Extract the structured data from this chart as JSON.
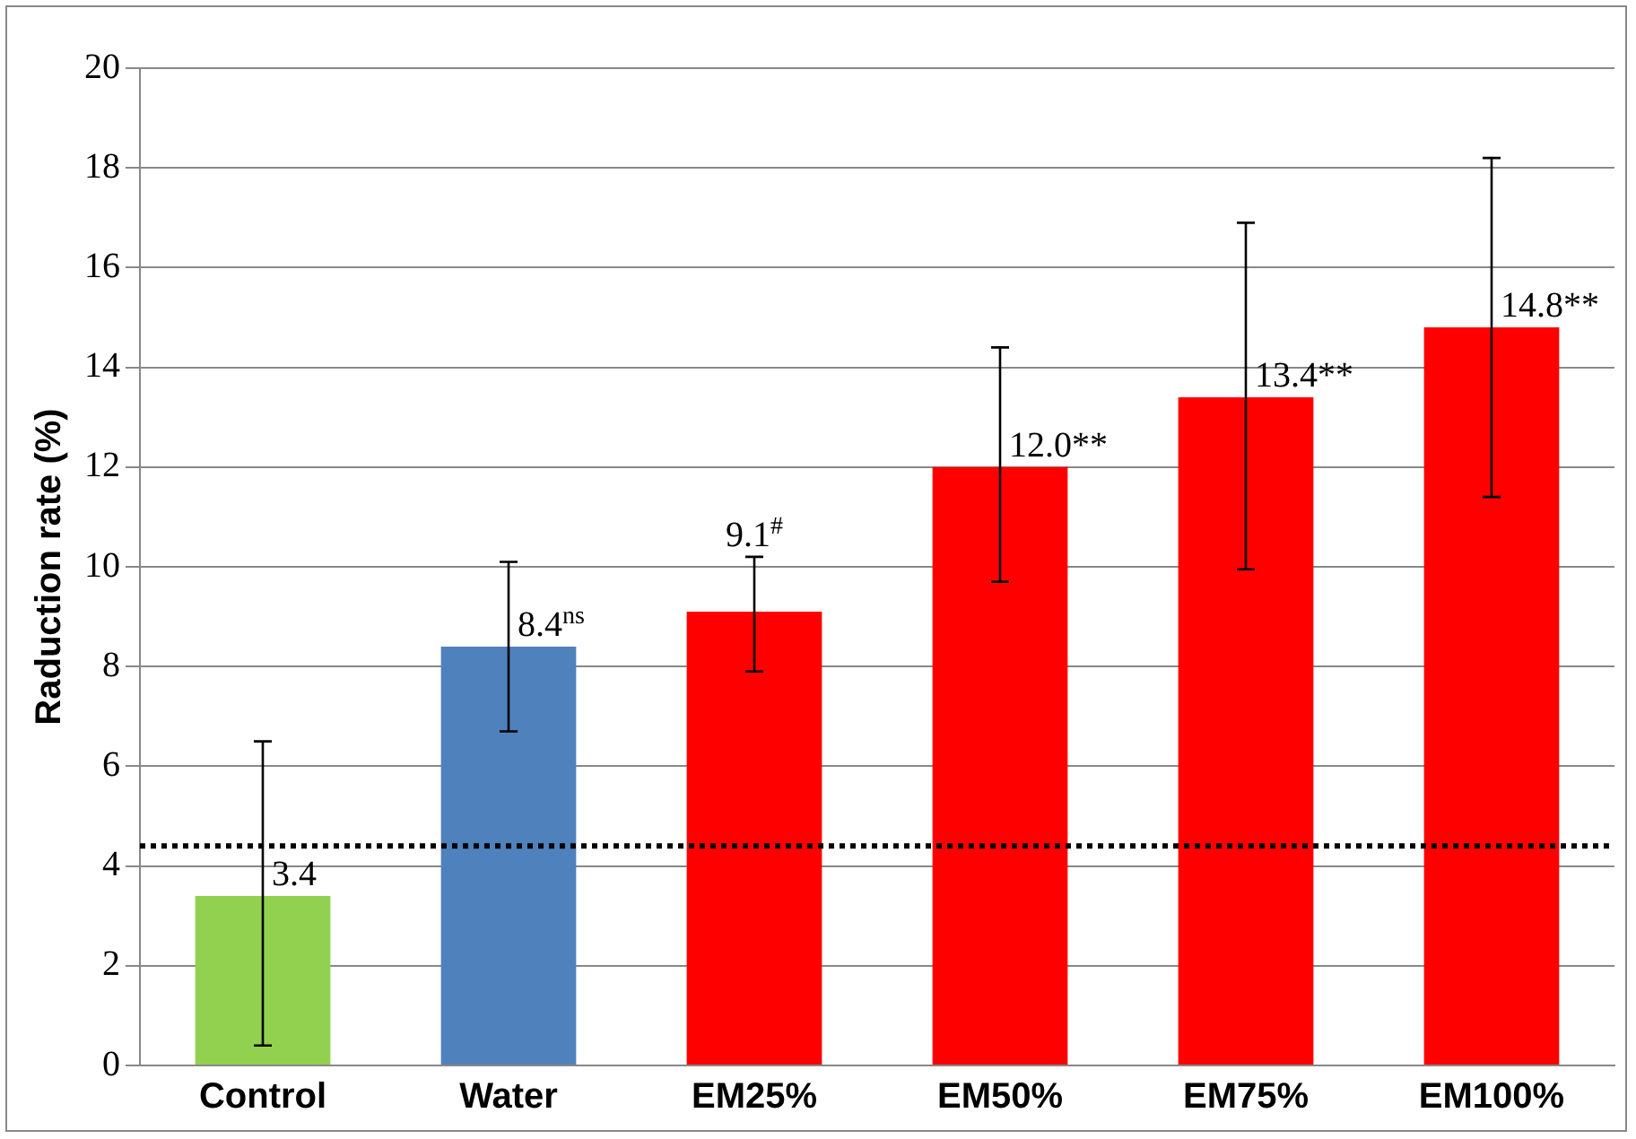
{
  "chart_data": {
    "type": "bar",
    "ylabel": "Raduction rate (%)",
    "categories": [
      "Control",
      "Water",
      "EM25%",
      "EM50%",
      "EM75%",
      "EM100%"
    ],
    "values": [
      3.4,
      8.4,
      9.1,
      12.0,
      13.4,
      14.8
    ],
    "colors": [
      "#92d050",
      "#4f81bd",
      "#ff0000",
      "#ff0000",
      "#ff0000",
      "#ff0000"
    ],
    "errors": [
      [
        0.4,
        6.5
      ],
      [
        6.7,
        10.1
      ],
      [
        7.9,
        10.2
      ],
      [
        9.7,
        14.4
      ],
      [
        9.95,
        16.9
      ],
      [
        11.4,
        18.2
      ]
    ],
    "value_labels": [
      "3.4",
      "8.4$^{ns}$",
      "9.1$^{#}$",
      "12.0**",
      "13.4**",
      "14.8**"
    ],
    "ylim": [
      0,
      20
    ],
    "yticks": [
      0,
      2,
      4,
      6,
      8,
      10,
      12,
      14,
      16,
      18,
      20
    ],
    "grid": "y",
    "ref_lines": [
      {
        "axis": "y",
        "value": 4.4,
        "color": "#000000",
        "line_style": "dotted"
      }
    ]
  }
}
